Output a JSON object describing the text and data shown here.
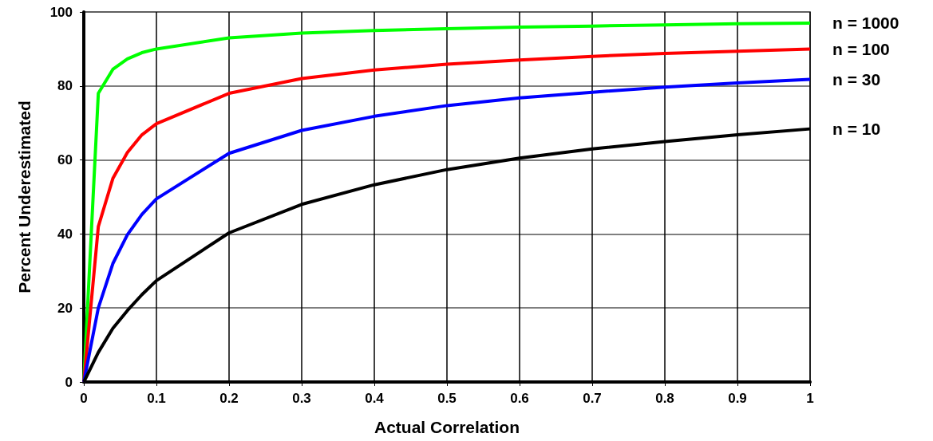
{
  "chart_data": {
    "type": "line",
    "xlabel": "Actual Correlation",
    "ylabel": "Percent Underestimated",
    "x": [
      0,
      0.02,
      0.04,
      0.06,
      0.08,
      0.1,
      0.2,
      0.3,
      0.4,
      0.5,
      0.6,
      0.7,
      0.8,
      0.9,
      1
    ],
    "series": [
      {
        "name": "n = 1000",
        "color": "#00ff00",
        "values": [
          0,
          78,
          84.5,
          87.3,
          89,
          90,
          93,
          94.3,
          95,
          95.5,
          95.9,
          96.2,
          96.5,
          96.8,
          97
        ]
      },
      {
        "name": "n = 100",
        "color": "#ff0000",
        "values": [
          0,
          42,
          55,
          62,
          66.8,
          69.8,
          78,
          82,
          84.3,
          85.9,
          87,
          88,
          88.8,
          89.4,
          90
        ]
      },
      {
        "name": "n = 30",
        "color": "#0000ff",
        "values": [
          0,
          20,
          32,
          39.8,
          45.3,
          49.5,
          61.8,
          68,
          71.8,
          74.7,
          76.8,
          78.3,
          79.7,
          80.8,
          81.8
        ]
      },
      {
        "name": "n = 10",
        "color": "#000000",
        "values": [
          0,
          8,
          14.5,
          19.3,
          23.6,
          27.4,
          40.3,
          48,
          53.3,
          57.4,
          60.5,
          63,
          65,
          66.8,
          68.4
        ]
      }
    ],
    "xlim": [
      0,
      1
    ],
    "xticks": [
      0,
      0.1,
      0.2,
      0.3,
      0.4,
      0.5,
      0.6,
      0.7,
      0.8,
      0.9,
      1
    ],
    "ylim": [
      0,
      100
    ],
    "yticks": [
      0,
      20,
      40,
      60,
      80,
      100
    ],
    "grid": true,
    "marker": "none",
    "line_style": "solid"
  }
}
